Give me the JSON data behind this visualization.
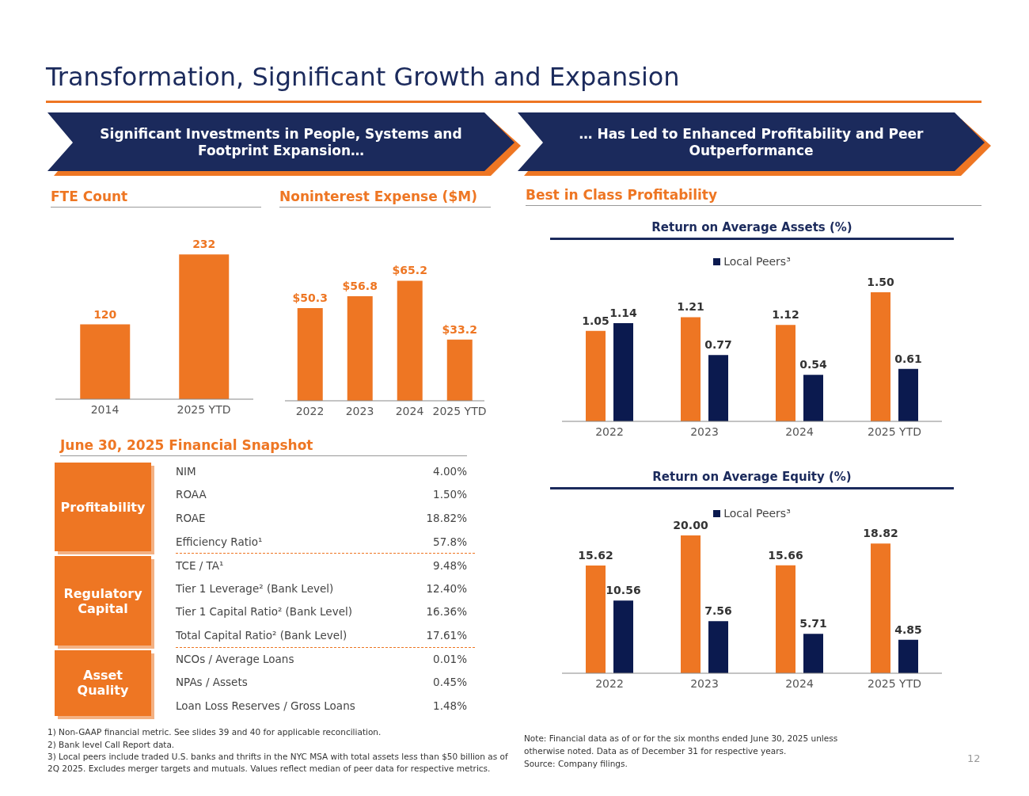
{
  "chart_data": [
    {
      "type": "other",
      "title": "Transformation, Significant Growth and Expansion",
      "annotations": [
        "Significant Investments in People, Systems and Footprint Expansion…",
        "… Has Led to Enhanced Profitability and Peer Outperformance",
        "12"
      ]
    },
    {
      "type": "bar",
      "title": "FTE Count",
      "categories": [
        "2014",
        "2025 YTD"
      ],
      "values": [
        120,
        232
      ],
      "color": "#ee7623",
      "data_labels": true
    },
    {
      "type": "bar",
      "title": "Noninterest Expense ($M)",
      "categories": [
        "2022",
        "2023",
        "2024",
        "2025 YTD"
      ],
      "values": [
        50.3,
        56.8,
        65.2,
        33.2
      ],
      "value_labels": [
        "$50.3",
        "$56.8",
        "$65.2",
        "$33.2"
      ],
      "color": "#ee7623"
    },
    {
      "type": "bar",
      "title": "Best in Class Profitability",
      "subtitle": "Return on Average Assets (%)",
      "categories": [
        "2022",
        "2023",
        "2024",
        "2025 YTD"
      ],
      "legend": "top",
      "series": [
        {
          "color": "#ee7623",
          "values": [
            1.05,
            1.21,
            1.12,
            1.5
          ],
          "value_labels": [
            "1.05",
            "1.21",
            "1.12",
            "1.50"
          ]
        },
        {
          "name": "Local Peers³",
          "color": "#0b1a4f",
          "values": [
            1.14,
            0.77,
            0.54,
            0.61
          ],
          "value_labels": [
            "1.14",
            "0.77",
            "0.54",
            "0.61"
          ]
        }
      ]
    },
    {
      "type": "bar",
      "subtitle": "Return on Average Equity (%)",
      "categories": [
        "2022",
        "2023",
        "2024",
        "2025 YTD"
      ],
      "legend": "top",
      "series": [
        {
          "color": "#ee7623",
          "values": [
            15.62,
            20,
            15.66,
            18.82
          ],
          "value_labels": [
            "15.62",
            "20.00",
            "15.66",
            "18.82"
          ]
        },
        {
          "name": "Local Peers³",
          "color": "#0b1a4f",
          "values": [
            10.56,
            7.56,
            5.71,
            4.85
          ],
          "value_labels": [
            "10.56",
            "7.56",
            "5.71",
            "4.85"
          ]
        }
      ],
      "annotations": [
        "Note: Financial data as of or for the six months ended June 30, 2025 unless otherwise noted. Data as of December 31 for respective years.",
        "Source: Company filings."
      ]
    },
    {
      "type": "other",
      "title": "June 30, 2025 Financial Snapshot",
      "y_categories": [
        "Profitability",
        "Regulatory Capital",
        "Asset Quality"
      ],
      "categories": [
        "NIM",
        "ROAA",
        "ROAE",
        "Efficiency Ratio¹",
        "TCE / TA¹",
        "Tier 1 Leverage² (Bank Level)",
        "Tier 1 Capital Ratio² (Bank Level)",
        "Total Capital Ratio² (Bank Level)",
        "NCOs / Average Loans",
        "NPAs / Assets",
        "Loan Loss Reserves / Gross Loans"
      ],
      "value_labels": [
        "4.00%",
        "1.50%",
        "18.82%",
        "57.8%",
        "9.48%",
        "12.40%",
        "16.36%",
        "17.61%",
        "0.01%",
        "0.45%",
        "1.48%"
      ],
      "annotations": [
        "1)  Non-GAAP financial metric. See slides 39 and 40 for applicable reconciliation.",
        "2)  Bank level Call Report data.",
        "3)  Local peers include traded U.S. banks and thrifts in the NYC MSA with total assets less than $50 billion as of 2Q 2025. Excludes merger targets and mutuals. Values reflect median of peer data for respective metrics."
      ]
    }
  ]
}
